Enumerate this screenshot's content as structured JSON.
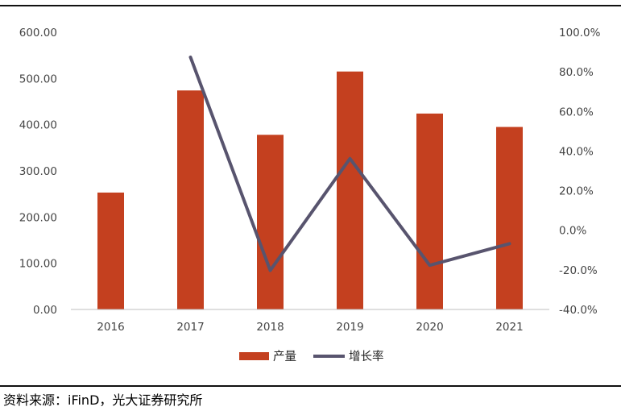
{
  "chart_data": {
    "type": "bar",
    "categories": [
      "2016",
      "2017",
      "2018",
      "2019",
      "2020",
      "2021"
    ],
    "series": [
      {
        "name": "产量",
        "type": "bar",
        "axis": "left",
        "color": "#C4401F",
        "values": [
          253,
          474,
          378,
          515,
          424,
          395
        ]
      },
      {
        "name": "增长率",
        "type": "line",
        "axis": "right",
        "color": "#58546E",
        "values": [
          null,
          87.4,
          -20.3,
          36.2,
          -17.7,
          -6.8
        ]
      }
    ],
    "y_left": {
      "ylim": [
        0,
        600
      ],
      "ticks": [
        0,
        100,
        200,
        300,
        400,
        500,
        600
      ],
      "tick_labels": [
        "0.00",
        "100.00",
        "200.00",
        "300.00",
        "400.00",
        "500.00",
        "600.00"
      ]
    },
    "y_right": {
      "ylim": [
        -40,
        100
      ],
      "ticks": [
        -40,
        -20,
        0,
        20,
        40,
        60,
        80,
        100
      ],
      "tick_labels": [
        "-40.0%",
        "-20.0%",
        "0.0%",
        "20.0%",
        "40.0%",
        "60.0%",
        "80.0%",
        "100.0%"
      ]
    },
    "grid": false,
    "legend_position": "bottom-center",
    "title": "",
    "xlabel": "",
    "ylabel": ""
  },
  "source": {
    "text": "资料来源：iFinD，光大证券研究所"
  }
}
